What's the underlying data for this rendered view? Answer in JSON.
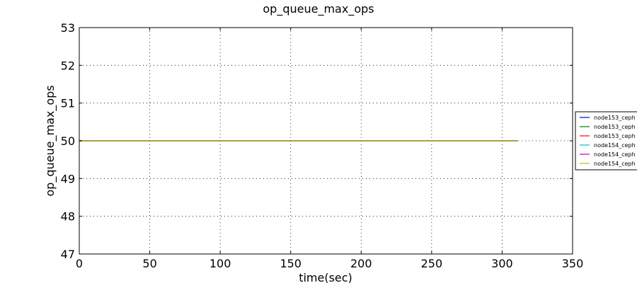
{
  "chart_data": {
    "type": "line",
    "title": "op_queue_max_ops",
    "xlabel": "time(sec)",
    "ylabel": "op_queue_max_ops",
    "xlim": [
      0,
      350
    ],
    "ylim": [
      47,
      53
    ],
    "xticks": [
      0,
      50,
      100,
      150,
      200,
      250,
      300,
      350
    ],
    "yticks": [
      47,
      48,
      49,
      50,
      51,
      52,
      53
    ],
    "grid": true,
    "legend_position": "right (partially cut off)",
    "series": [
      {
        "name": "node153_ceph",
        "color": "#0000ff",
        "x": [
          0,
          311
        ],
        "y": [
          50,
          50
        ]
      },
      {
        "name": "node153_ceph",
        "color": "#008000",
        "x": [
          0,
          311
        ],
        "y": [
          50,
          50
        ]
      },
      {
        "name": "node153_ceph",
        "color": "#ff0000",
        "x": [
          0,
          311
        ],
        "y": [
          50,
          50
        ]
      },
      {
        "name": "node154_ceph",
        "color": "#00bfbf",
        "x": [
          0,
          311
        ],
        "y": [
          50,
          50
        ]
      },
      {
        "name": "node154_ceph",
        "color": "#bf00bf",
        "x": [
          0,
          311
        ],
        "y": [
          50,
          50
        ]
      },
      {
        "name": "node154_ceph",
        "color": "#bfbf00",
        "x": [
          0,
          311
        ],
        "y": [
          50,
          50
        ]
      }
    ]
  }
}
